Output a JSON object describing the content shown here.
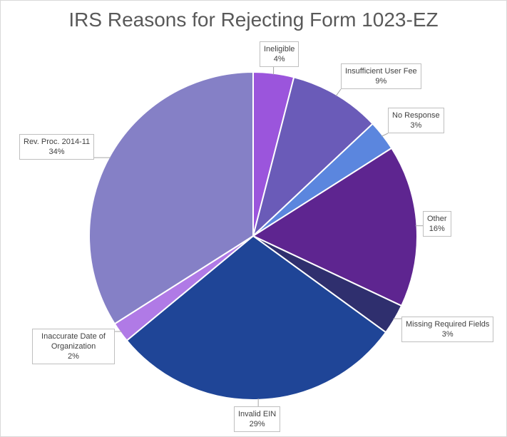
{
  "chart_data": {
    "type": "pie",
    "title": "IRS Reasons for Rejecting Form 1023-EZ",
    "start_angle_deg": 0,
    "direction": "clockwise",
    "slices": [
      {
        "label": "Ineligible",
        "value": 4,
        "value_label": "4%",
        "color": "#9b55dc"
      },
      {
        "label": "Insufficient User Fee",
        "value": 9,
        "value_label": "9%",
        "color": "#6a5bb8"
      },
      {
        "label": "No Response",
        "value": 3,
        "value_label": "3%",
        "color": "#5b86de"
      },
      {
        "label": "Other",
        "value": 16,
        "value_label": "16%",
        "color": "#5e2590"
      },
      {
        "label": "Missing Required Fields",
        "value": 3,
        "value_label": "3%",
        "color": "#2f2f6e"
      },
      {
        "label": "Invalid EIN",
        "value": 29,
        "value_label": "29%",
        "color": "#1f4597"
      },
      {
        "label": "Inaccurate Date of Organization",
        "value": 2,
        "value_label": "2%",
        "color": "#b07ae6"
      },
      {
        "label": "Rev. Proc. 2014-11",
        "value": 34,
        "value_label": "34%",
        "color": "#8580c6"
      }
    ]
  }
}
